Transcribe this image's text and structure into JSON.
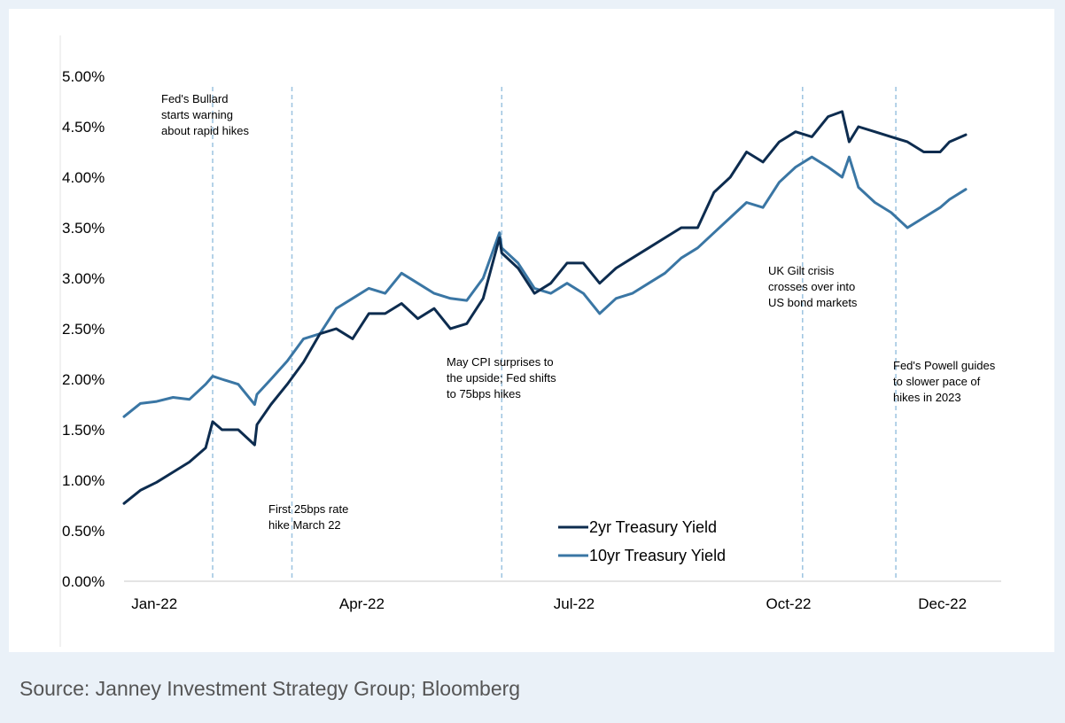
{
  "colors": {
    "series_2yr": "#0d2c4f",
    "series_10yr": "#3a76a4",
    "event_line": "#9cc3e0",
    "axis": "#c8c8c8",
    "frame": "#eaf1f8",
    "source": "#555555"
  },
  "source": "Source: Janney Investment Strategy Group; Bloomberg",
  "chart_data": {
    "type": "line",
    "title": "",
    "xlabel": "",
    "ylabel": "",
    "ylim": [
      0,
      5
    ],
    "yticks": [
      0,
      0.5,
      1,
      1.5,
      2,
      2.5,
      3,
      3.5,
      4,
      4.5,
      5
    ],
    "ytick_labels": [
      "0.00%",
      "0.50%",
      "1.00%",
      "1.50%",
      "2.00%",
      "2.50%",
      "3.00%",
      "3.50%",
      "4.00%",
      "4.50%",
      "5.00%"
    ],
    "x_range": [
      "2022-01-03",
      "2022-12-30"
    ],
    "xticks": [
      {
        "date": "2022-01-16",
        "label": "Jan-22"
      },
      {
        "date": "2022-04-15",
        "label": "Apr-22"
      },
      {
        "date": "2022-07-15",
        "label": "Jul-22"
      },
      {
        "date": "2022-10-15",
        "label": "Oct-22"
      },
      {
        "date": "2022-12-20",
        "label": "Dec-22"
      }
    ],
    "legend": {
      "position": "bottom-center"
    },
    "series": [
      {
        "name": "2yr Treasury Yield",
        "x": [
          "2022-01-03",
          "2022-01-10",
          "2022-01-17",
          "2022-01-24",
          "2022-01-31",
          "2022-02-07",
          "2022-02-10",
          "2022-02-14",
          "2022-02-21",
          "2022-02-28",
          "2022-03-01",
          "2022-03-07",
          "2022-03-14",
          "2022-03-21",
          "2022-03-28",
          "2022-04-04",
          "2022-04-11",
          "2022-04-18",
          "2022-04-25",
          "2022-05-02",
          "2022-05-09",
          "2022-05-16",
          "2022-05-23",
          "2022-05-30",
          "2022-06-06",
          "2022-06-13",
          "2022-06-14",
          "2022-06-21",
          "2022-06-28",
          "2022-07-05",
          "2022-07-12",
          "2022-07-19",
          "2022-07-26",
          "2022-08-02",
          "2022-08-09",
          "2022-08-16",
          "2022-08-23",
          "2022-08-30",
          "2022-09-06",
          "2022-09-13",
          "2022-09-20",
          "2022-09-27",
          "2022-10-04",
          "2022-10-11",
          "2022-10-18",
          "2022-10-25",
          "2022-11-01",
          "2022-11-07",
          "2022-11-10",
          "2022-11-14",
          "2022-11-21",
          "2022-11-28",
          "2022-12-05",
          "2022-12-12",
          "2022-12-19",
          "2022-12-23",
          "2022-12-30"
        ],
        "values": [
          0.77,
          0.9,
          0.98,
          1.08,
          1.18,
          1.32,
          1.58,
          1.5,
          1.5,
          1.35,
          1.55,
          1.75,
          1.95,
          2.17,
          2.45,
          2.5,
          2.4,
          2.65,
          2.65,
          2.75,
          2.6,
          2.7,
          2.5,
          2.55,
          2.8,
          3.4,
          3.25,
          3.1,
          2.85,
          2.95,
          3.15,
          3.15,
          2.95,
          3.1,
          3.2,
          3.3,
          3.4,
          3.5,
          3.5,
          3.85,
          4.0,
          4.25,
          4.15,
          4.35,
          4.45,
          4.4,
          4.6,
          4.65,
          4.35,
          4.5,
          4.45,
          4.4,
          4.35,
          4.25,
          4.25,
          4.35,
          4.42
        ]
      },
      {
        "name": "10yr Treasury Yield",
        "x": [
          "2022-01-03",
          "2022-01-10",
          "2022-01-17",
          "2022-01-24",
          "2022-01-31",
          "2022-02-07",
          "2022-02-10",
          "2022-02-14",
          "2022-02-21",
          "2022-02-28",
          "2022-03-01",
          "2022-03-07",
          "2022-03-14",
          "2022-03-21",
          "2022-03-28",
          "2022-04-04",
          "2022-04-11",
          "2022-04-18",
          "2022-04-25",
          "2022-05-02",
          "2022-05-09",
          "2022-05-16",
          "2022-05-23",
          "2022-05-30",
          "2022-06-06",
          "2022-06-13",
          "2022-06-14",
          "2022-06-21",
          "2022-06-28",
          "2022-07-05",
          "2022-07-12",
          "2022-07-19",
          "2022-07-26",
          "2022-08-02",
          "2022-08-09",
          "2022-08-16",
          "2022-08-23",
          "2022-08-30",
          "2022-09-06",
          "2022-09-13",
          "2022-09-20",
          "2022-09-27",
          "2022-10-04",
          "2022-10-11",
          "2022-10-18",
          "2022-10-25",
          "2022-11-01",
          "2022-11-07",
          "2022-11-10",
          "2022-11-14",
          "2022-11-21",
          "2022-11-28",
          "2022-12-05",
          "2022-12-12",
          "2022-12-19",
          "2022-12-23",
          "2022-12-30"
        ],
        "values": [
          1.63,
          1.76,
          1.78,
          1.82,
          1.8,
          1.95,
          2.03,
          2.0,
          1.95,
          1.75,
          1.85,
          2.0,
          2.18,
          2.4,
          2.45,
          2.7,
          2.8,
          2.9,
          2.85,
          3.05,
          2.95,
          2.85,
          2.8,
          2.78,
          3.0,
          3.45,
          3.3,
          3.15,
          2.9,
          2.85,
          2.95,
          2.85,
          2.65,
          2.8,
          2.85,
          2.95,
          3.05,
          3.2,
          3.3,
          3.45,
          3.6,
          3.75,
          3.7,
          3.95,
          4.1,
          4.2,
          4.1,
          4.0,
          4.2,
          3.9,
          3.75,
          3.65,
          3.5,
          3.6,
          3.7,
          3.78,
          3.88
        ]
      }
    ],
    "annotations": [
      {
        "date": "2022-02-10",
        "text": [
          "Fed's Bullard",
          "starts warning",
          "about rapid hikes"
        ]
      },
      {
        "date": "2022-03-16",
        "text": [
          "First 25bps rate",
          "hike March 22"
        ]
      },
      {
        "date": "2022-06-14",
        "text": [
          "May CPI surprises to",
          "the upside; Fed shifts",
          "to 75bps hikes"
        ]
      },
      {
        "date": "2022-10-21",
        "text": [
          "UK Gilt crisis",
          "crosses over into",
          "US bond markets"
        ]
      },
      {
        "date": "2022-11-30",
        "text": [
          "Fed's Powell guides",
          "to slower pace of",
          "hikes in 2023"
        ]
      }
    ]
  }
}
